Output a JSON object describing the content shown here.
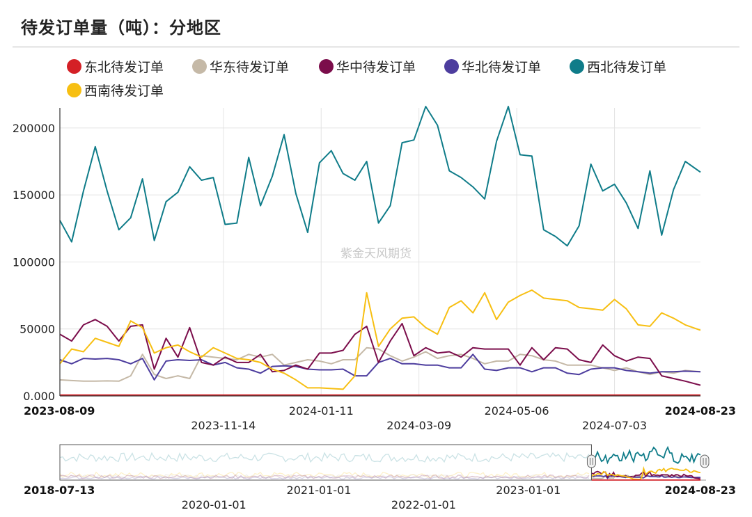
{
  "title": "待发订单量（吨）：分地区",
  "watermark": "紫金天风期货",
  "chart_data": {
    "type": "line",
    "title": "待发订单量（吨）：分地区",
    "legend_placement": "top",
    "grid": true,
    "ylim": [
      0,
      215000
    ],
    "y_ticks": [
      "0.000",
      "50000",
      "100000",
      "150000",
      "200000"
    ],
    "y_tick_values": [
      0,
      50000,
      100000,
      150000,
      200000
    ],
    "x_start": "2023-08-09",
    "x_end": "2024-08-23",
    "x_ticks": [
      {
        "label": "2023-08-09",
        "bold": true,
        "row": 1
      },
      {
        "label": "2023-11-14",
        "bold": false,
        "row": 2
      },
      {
        "label": "2024-01-11",
        "bold": false,
        "row": 1
      },
      {
        "label": "2024-03-09",
        "bold": false,
        "row": 2
      },
      {
        "label": "2024-05-06",
        "bold": false,
        "row": 1
      },
      {
        "label": "2024-07-03",
        "bold": false,
        "row": 2
      },
      {
        "label": "2024-08-23",
        "bold": true,
        "row": 1
      }
    ],
    "x": [
      "2023-08-09",
      "2023-08-16",
      "2023-08-23",
      "2023-08-30",
      "2023-09-06",
      "2023-09-13",
      "2023-09-20",
      "2023-09-27",
      "2023-10-04",
      "2023-10-11",
      "2023-10-18",
      "2023-10-25",
      "2023-11-01",
      "2023-11-08",
      "2023-11-15",
      "2023-11-22",
      "2023-11-29",
      "2023-12-06",
      "2023-12-13",
      "2023-12-20",
      "2023-12-27",
      "2024-01-03",
      "2024-01-10",
      "2024-01-17",
      "2024-01-24",
      "2024-01-31",
      "2024-02-07",
      "2024-02-14",
      "2024-02-21",
      "2024-02-28",
      "2024-03-06",
      "2024-03-13",
      "2024-03-20",
      "2024-03-27",
      "2024-04-03",
      "2024-04-10",
      "2024-04-17",
      "2024-04-24",
      "2024-05-01",
      "2024-05-08",
      "2024-05-15",
      "2024-05-22",
      "2024-05-29",
      "2024-06-05",
      "2024-06-12",
      "2024-06-19",
      "2024-06-26",
      "2024-07-03",
      "2024-07-10",
      "2024-07-17",
      "2024-07-24",
      "2024-07-31",
      "2024-08-07",
      "2024-08-14",
      "2024-08-23"
    ],
    "series": [
      {
        "name": "东北待发订单",
        "color": "#d42026",
        "values": [
          600,
          600,
          600,
          600,
          600,
          600,
          600,
          600,
          600,
          600,
          600,
          600,
          600,
          600,
          600,
          600,
          600,
          600,
          600,
          600,
          600,
          600,
          600,
          600,
          600,
          600,
          600,
          600,
          600,
          600,
          600,
          600,
          600,
          600,
          600,
          600,
          600,
          600,
          600,
          600,
          600,
          600,
          600,
          600,
          600,
          600,
          600,
          600,
          600,
          600,
          600,
          600,
          600,
          600,
          600
        ]
      },
      {
        "name": "华东待发订单",
        "color": "#c5b9a7",
        "values": [
          12000,
          11500,
          11000,
          11000,
          11200,
          11000,
          15000,
          31000,
          16000,
          13000,
          15000,
          13000,
          30000,
          29000,
          28000,
          27000,
          31000,
          29000,
          31000,
          23000,
          25000,
          27000,
          26000,
          24000,
          27000,
          27000,
          36000,
          35000,
          30000,
          26000,
          29000,
          33000,
          28000,
          30000,
          31000,
          28000,
          24000,
          26000,
          26000,
          31000,
          30000,
          27000,
          26000,
          23000,
          23000,
          23000,
          21000,
          19000,
          21000,
          18000,
          16000,
          18000,
          17000,
          19000,
          18000
        ]
      },
      {
        "name": "华中待发订单",
        "color": "#7b0d4b",
        "values": [
          46000,
          41000,
          53000,
          57000,
          52000,
          41000,
          52000,
          53000,
          20000,
          43000,
          29000,
          51000,
          25000,
          23000,
          29000,
          25000,
          25000,
          31000,
          18000,
          19000,
          23000,
          20000,
          32000,
          32000,
          34000,
          46000,
          52000,
          25000,
          41000,
          54000,
          30000,
          36000,
          32000,
          33000,
          29000,
          36000,
          35000,
          35000,
          35000,
          23000,
          36000,
          27000,
          36000,
          35000,
          27000,
          25000,
          38000,
          30000,
          26000,
          29000,
          28000,
          15000,
          13000,
          11000,
          8000
        ]
      },
      {
        "name": "华北待发订单",
        "color": "#4d3d9e",
        "values": [
          27000,
          24000,
          28000,
          27500,
          28000,
          27000,
          24000,
          28000,
          12000,
          26000,
          27000,
          26500,
          27000,
          23000,
          25000,
          21000,
          20000,
          17000,
          22000,
          22500,
          22000,
          20000,
          19500,
          19500,
          20000,
          15000,
          15000,
          25000,
          28000,
          24000,
          24000,
          23000,
          23000,
          21000,
          21000,
          31000,
          20000,
          19000,
          21000,
          21000,
          18000,
          21000,
          21000,
          17000,
          16000,
          20000,
          21000,
          21000,
          19000,
          18000,
          17000,
          18000,
          18000,
          18500,
          18000
        ]
      },
      {
        "name": "西北待发订单",
        "color": "#0f7c89",
        "values": [
          131000,
          115000,
          153000,
          186000,
          153000,
          124000,
          133000,
          162000,
          116000,
          145000,
          152000,
          171000,
          161000,
          163000,
          128000,
          129000,
          178000,
          142000,
          164000,
          195000,
          151000,
          122000,
          174000,
          183000,
          166000,
          161000,
          175000,
          129000,
          142000,
          189000,
          191000,
          216000,
          202000,
          168000,
          163000,
          156000,
          147000,
          190000,
          216000,
          180000,
          179000,
          124000,
          119000,
          112000,
          127000,
          173000,
          153000,
          158000,
          144000,
          125000,
          168000,
          120000,
          154000,
          175000,
          167000
        ]
      },
      {
        "name": "西南待发订单",
        "color": "#f7bf12",
        "values": [
          24000,
          35000,
          33000,
          43000,
          40000,
          37000,
          56000,
          51000,
          32000,
          36000,
          38000,
          33000,
          29000,
          36000,
          32000,
          28000,
          27000,
          25000,
          20000,
          17000,
          12000,
          6000,
          6000,
          5500,
          5000,
          15000,
          77000,
          37000,
          50000,
          58000,
          59000,
          51000,
          46000,
          66000,
          71000,
          62000,
          77000,
          57000,
          70000,
          75000,
          79000,
          73000,
          72000,
          71000,
          66000,
          65000,
          64000,
          72000,
          65000,
          53000,
          52000,
          62000,
          58000,
          53000,
          49000
        ]
      }
    ]
  },
  "navigator": {
    "x_ticks": [
      {
        "label": "2018-07-13",
        "bold": true,
        "row": 1
      },
      {
        "label": "2020-01-01",
        "bold": false,
        "row": 2
      },
      {
        "label": "2021-01-01",
        "bold": false,
        "row": 1
      },
      {
        "label": "2022-01-01",
        "bold": false,
        "row": 2
      },
      {
        "label": "2023-01-01",
        "bold": false,
        "row": 1
      },
      {
        "label": "2024-08-23",
        "bold": true,
        "row": 1
      }
    ]
  }
}
